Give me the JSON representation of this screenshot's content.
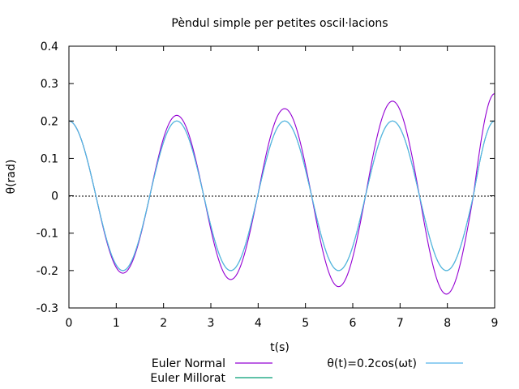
{
  "chart_data": {
    "type": "line",
    "title": "Pèndul simple per petites oscil·lacions",
    "xlabel": "t(s)",
    "ylabel": "θ(rad)",
    "xlim": [
      0,
      9
    ],
    "ylim": [
      -0.3,
      0.4
    ],
    "xticks": [
      "0",
      "1",
      "2",
      "3",
      "4",
      "5",
      "6",
      "7",
      "8",
      "9"
    ],
    "yticks": [
      "-0.3",
      "-0.2",
      "-0.1",
      "0",
      "0.1",
      "0.2",
      "0.3",
      "0.4"
    ],
    "grid": false,
    "zero_line": true,
    "legend_position": "bottom",
    "series": [
      {
        "name": "Euler Normal",
        "color": "#9400d3",
        "x": [
          0,
          0.57,
          1.14,
          1.71,
          2.28,
          2.85,
          3.42,
          3.99,
          4.56,
          5.13,
          5.7,
          6.27,
          6.84,
          7.41,
          7.98,
          8.55,
          9.0
        ],
        "y": [
          0.2,
          0.0,
          -0.207,
          0.0,
          0.215,
          0.0,
          -0.224,
          0.0,
          0.233,
          0.0,
          -0.243,
          0.0,
          0.253,
          0.0,
          -0.263,
          0.0,
          0.273
        ]
      },
      {
        "name": "Euler Millorat",
        "color": "#009e73",
        "x": [
          0,
          0.57,
          1.14,
          1.71,
          2.28,
          2.85,
          3.42,
          3.99,
          4.56,
          5.13,
          5.7,
          6.27,
          6.84,
          7.41,
          7.98,
          8.55,
          9.0
        ],
        "y": [
          0.2,
          0.0,
          -0.2,
          0.0,
          0.2,
          0.0,
          -0.2,
          0.0,
          0.2,
          0.0,
          -0.2,
          0.0,
          0.2,
          0.0,
          -0.2,
          0.0,
          0.2
        ]
      },
      {
        "name": "θ(t)=0.2cos(ωt)",
        "color": "#56b4e9",
        "x": [
          0,
          0.57,
          1.14,
          1.71,
          2.28,
          2.85,
          3.42,
          3.99,
          4.56,
          5.13,
          5.7,
          6.27,
          6.84,
          7.41,
          7.98,
          8.55,
          9.0
        ],
        "y": [
          0.2,
          0.0,
          -0.2,
          0.0,
          0.2,
          0.0,
          -0.2,
          0.0,
          0.2,
          0.0,
          -0.2,
          0.0,
          0.2,
          0.0,
          -0.2,
          0.0,
          0.2
        ]
      }
    ]
  }
}
